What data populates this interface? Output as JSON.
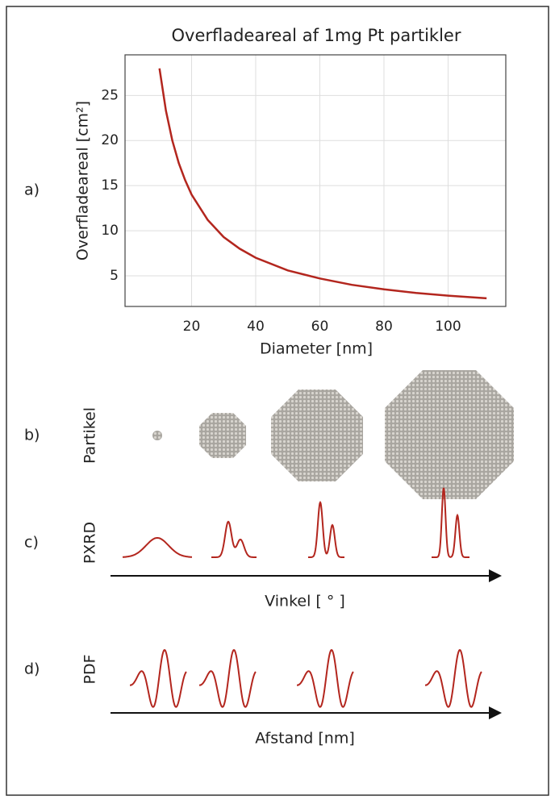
{
  "chart_data": {
    "type": "line",
    "title": "Overfladeareal af 1mg Pt partikler",
    "x_label": "Diameter [nm]",
    "y_label": "Overfladeareal [cm²]",
    "x": [
      10,
      12,
      14,
      16,
      18,
      20,
      25,
      30,
      35,
      40,
      50,
      60,
      70,
      80,
      90,
      100,
      112
    ],
    "values": [
      28,
      23.3,
      20,
      17.5,
      15.6,
      14,
      11.2,
      9.3,
      8,
      7,
      5.6,
      4.7,
      4,
      3.5,
      3.1,
      2.8,
      2.5
    ],
    "color": "#b3261e",
    "xlim": [
      0,
      118
    ],
    "xticks": [
      20,
      40,
      60,
      80,
      100
    ],
    "ylim": [
      1.6,
      29.5
    ],
    "yticks": [
      5,
      10,
      15,
      20,
      25
    ],
    "grid": true
  },
  "figure": {
    "panel_labels": [
      "a)",
      "b)",
      "c)",
      "d)"
    ],
    "row_labels": [
      "Partikel",
      "PXRD",
      "PDF"
    ],
    "axis_labels": [
      "Vinkel [ ° ]",
      "Afstand [nm]"
    ]
  }
}
